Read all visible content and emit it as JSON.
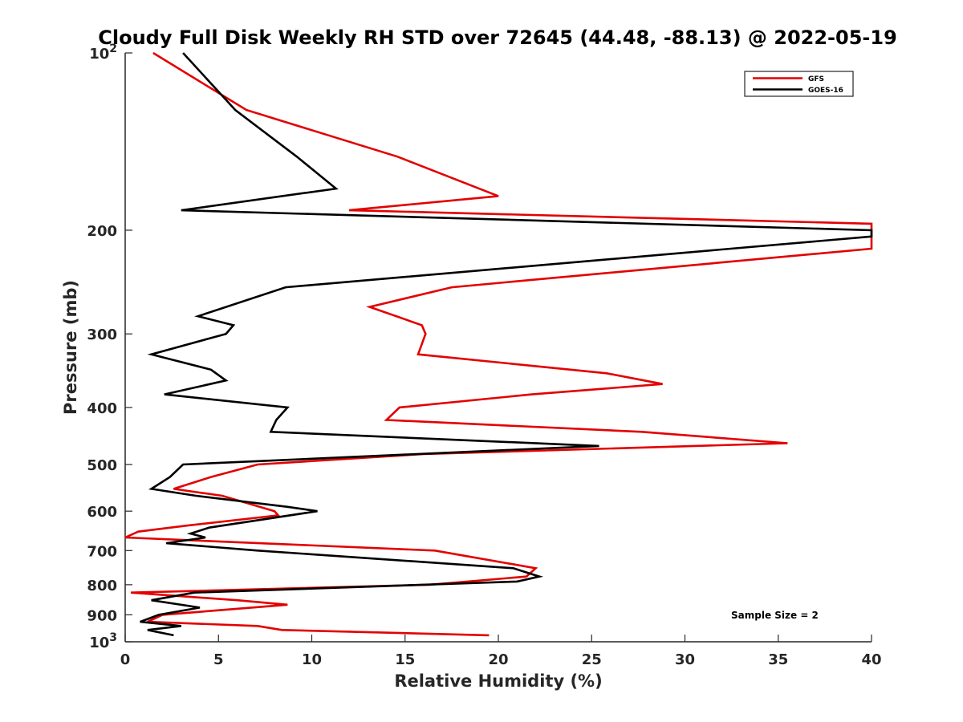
{
  "chart_data": {
    "type": "line",
    "title": "Cloudy Full Disk Weekly RH STD over 72645 (44.48, -88.13) @ 2022-05-19",
    "xlabel": "Relative Humidity (%)",
    "ylabel": "Pressure (mb)",
    "xlim": [
      0,
      40
    ],
    "ylim": [
      100,
      1000
    ],
    "y_scale": "log",
    "y_reversed": true,
    "grid": false,
    "legend_position": "top-right",
    "x_ticks": [
      "0",
      "5",
      "10",
      "15",
      "20",
      "25",
      "30",
      "35",
      "40"
    ],
    "y_ticks": [
      {
        "value": 100,
        "base": "10",
        "exp": "2"
      },
      {
        "value": 200,
        "label": "200"
      },
      {
        "value": 300,
        "label": "300"
      },
      {
        "value": 400,
        "label": "400"
      },
      {
        "value": 500,
        "label": "500"
      },
      {
        "value": 600,
        "label": "600"
      },
      {
        "value": 700,
        "label": "700"
      },
      {
        "value": 800,
        "label": "800"
      },
      {
        "value": 900,
        "label": "900"
      },
      {
        "value": 1000,
        "base": "10",
        "exp": "3"
      }
    ],
    "series": [
      {
        "name": "GFS",
        "color": "#e30000",
        "points": [
          [
            1.5,
            100
          ],
          [
            6.5,
            125
          ],
          [
            14.6,
            150
          ],
          [
            20.0,
            175
          ],
          [
            12.0,
            185
          ],
          [
            40.0,
            195
          ],
          [
            40.0,
            215
          ],
          [
            17.5,
            250
          ],
          [
            13.1,
            270
          ],
          [
            15.9,
            290
          ],
          [
            16.1,
            300
          ],
          [
            15.7,
            325
          ],
          [
            25.8,
            350
          ],
          [
            28.8,
            365
          ],
          [
            21.8,
            380
          ],
          [
            14.7,
            400
          ],
          [
            14.0,
            420
          ],
          [
            27.7,
            440
          ],
          [
            35.5,
            460
          ],
          [
            16.0,
            480
          ],
          [
            7.1,
            500
          ],
          [
            4.6,
            525
          ],
          [
            2.6,
            550
          ],
          [
            5.2,
            565
          ],
          [
            8.0,
            600
          ],
          [
            8.2,
            610
          ],
          [
            3.3,
            635
          ],
          [
            0.7,
            650
          ],
          [
            0.0,
            665
          ],
          [
            16.6,
            700
          ],
          [
            22.0,
            750
          ],
          [
            21.5,
            775
          ],
          [
            16.3,
            800
          ],
          [
            0.3,
            825
          ],
          [
            6.0,
            850
          ],
          [
            8.7,
            865
          ],
          [
            2.0,
            900
          ],
          [
            1.2,
            925
          ],
          [
            7.1,
            940
          ],
          [
            8.4,
            955
          ],
          [
            19.5,
            975
          ]
        ]
      },
      {
        "name": "GOES-16",
        "color": "#000000",
        "points": [
          [
            3.1,
            100
          ],
          [
            5.9,
            125
          ],
          [
            9.2,
            150
          ],
          [
            11.3,
            170
          ],
          [
            3.0,
            185
          ],
          [
            40.0,
            200
          ],
          [
            40.0,
            205
          ],
          [
            8.6,
            250
          ],
          [
            3.9,
            280
          ],
          [
            5.8,
            290
          ],
          [
            5.4,
            300
          ],
          [
            1.4,
            325
          ],
          [
            4.6,
            345
          ],
          [
            5.4,
            360
          ],
          [
            2.1,
            380
          ],
          [
            8.7,
            400
          ],
          [
            8.1,
            420
          ],
          [
            7.8,
            440
          ],
          [
            25.4,
            465
          ],
          [
            3.1,
            500
          ],
          [
            2.4,
            525
          ],
          [
            1.4,
            550
          ],
          [
            3.8,
            565
          ],
          [
            8.7,
            590
          ],
          [
            10.3,
            600
          ],
          [
            4.5,
            640
          ],
          [
            3.5,
            655
          ],
          [
            4.3,
            665
          ],
          [
            2.2,
            680
          ],
          [
            7.1,
            700
          ],
          [
            20.8,
            750
          ],
          [
            22.2,
            775
          ],
          [
            21.0,
            790
          ],
          [
            3.7,
            825
          ],
          [
            1.4,
            850
          ],
          [
            4.0,
            875
          ],
          [
            1.8,
            900
          ],
          [
            0.8,
            925
          ],
          [
            3.0,
            940
          ],
          [
            1.2,
            955
          ],
          [
            2.6,
            975
          ]
        ]
      }
    ],
    "annotation": "Sample Size = 2"
  }
}
